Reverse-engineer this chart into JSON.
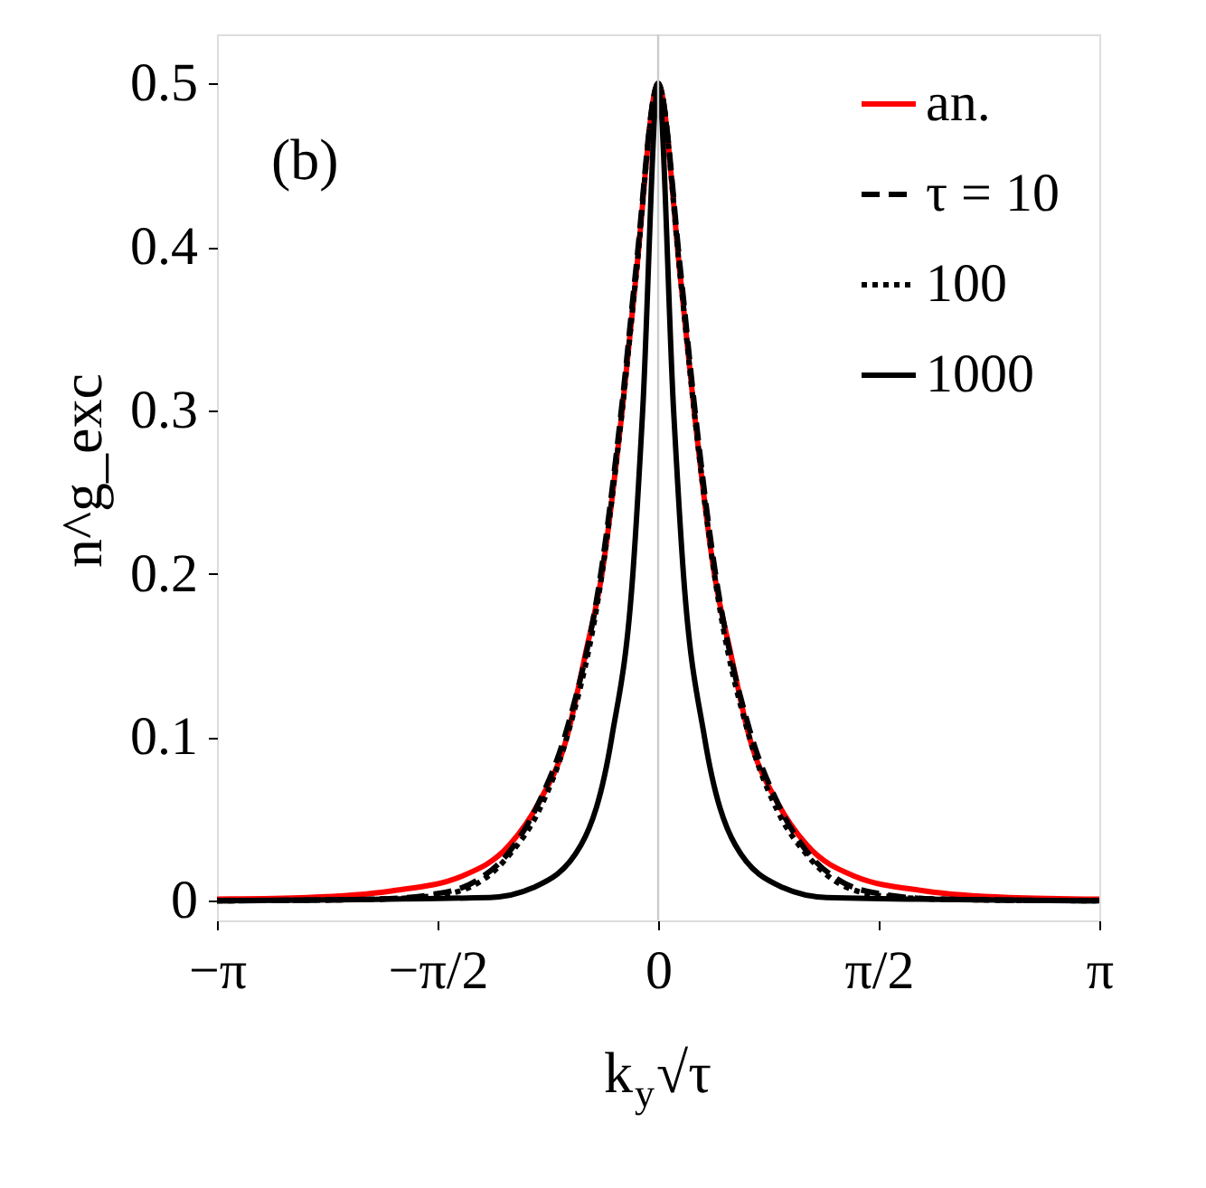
{
  "chart_data": {
    "type": "line",
    "xlabel": "k$_{y}$√τ",
    "ylabel": "n^g_exc",
    "annotations": [
      "(b)"
    ],
    "xlim": [
      -3.14159,
      3.14159
    ],
    "xticks": [
      {
        "value": -3.14159,
        "label": "−π"
      },
      {
        "value": -1.5708,
        "label": "−π/2"
      },
      {
        "value": 0,
        "label": "0"
      },
      {
        "value": 1.5708,
        "label": "π/2"
      },
      {
        "value": 3.14159,
        "label": "π"
      }
    ],
    "ylim": [
      -0.012,
      0.53
    ],
    "yticks": [
      0,
      0.1,
      0.2,
      0.3,
      0.4,
      0.5
    ],
    "grid": false,
    "legend": "top right",
    "marker": "none",
    "ref_lines": [
      {
        "axis": "x",
        "value": 0,
        "label": null,
        "color": "#cccccc"
      }
    ],
    "series": [
      {
        "name": "an.",
        "color": "#ff0000",
        "line_style": "solid",
        "x": [
          -3.14159,
          -2.5,
          -1.9,
          -1.4,
          -1.06,
          -0.85,
          -0.65,
          -0.52,
          -0.4,
          -0.256,
          -0.16,
          0,
          0.16,
          0.256,
          0.4,
          0.52,
          0.65,
          0.85,
          1.06,
          1.4,
          1.9,
          2.5,
          3.14159
        ],
        "values": [
          0.001,
          0.002,
          0.006,
          0.015,
          0.034,
          0.06,
          0.1,
          0.15,
          0.2,
          0.3,
          0.38,
          0.5,
          0.38,
          0.3,
          0.2,
          0.15,
          0.1,
          0.06,
          0.034,
          0.015,
          0.006,
          0.002,
          0.001
        ]
      },
      {
        "name": "τ = 10",
        "color": "#000000",
        "line_style": "dashed",
        "x": [
          -3.14159,
          -2.0,
          -1.6,
          -1.3,
          -1.06,
          -0.85,
          -0.65,
          -0.4,
          -0.256,
          -0.16,
          0,
          0.16,
          0.256,
          0.4,
          0.65,
          0.85,
          1.06,
          1.3,
          1.6,
          2.0,
          3.14159
        ],
        "values": [
          0,
          0.001,
          0.004,
          0.012,
          0.03,
          0.06,
          0.105,
          0.205,
          0.305,
          0.385,
          0.5,
          0.385,
          0.305,
          0.205,
          0.105,
          0.06,
          0.03,
          0.012,
          0.004,
          0.001,
          0
        ]
      },
      {
        "name": "100",
        "color": "#000000",
        "line_style": "dotted",
        "x": [
          -3.14159,
          -2.0,
          -1.6,
          -1.3,
          -1.06,
          -0.85,
          -0.65,
          -0.4,
          -0.256,
          -0.16,
          0,
          0.16,
          0.256,
          0.4,
          0.65,
          0.85,
          1.06,
          1.3,
          1.6,
          2.0,
          3.14159
        ],
        "values": [
          0,
          0.001,
          0.003,
          0.01,
          0.028,
          0.055,
          0.1,
          0.2,
          0.3,
          0.38,
          0.5,
          0.38,
          0.3,
          0.2,
          0.1,
          0.055,
          0.028,
          0.01,
          0.003,
          0.001,
          0
        ]
      },
      {
        "name": "1000",
        "color": "#000000",
        "line_style": "solid",
        "x": [
          -3.14159,
          -1.2,
          -0.89,
          -0.55,
          -0.33,
          -0.18,
          -0.11,
          0,
          0.11,
          0.18,
          0.33,
          0.55,
          0.89,
          1.2,
          3.14159
        ],
        "values": [
          0,
          0.002,
          0.008,
          0.034,
          0.1,
          0.2,
          0.3,
          0.5,
          0.3,
          0.2,
          0.1,
          0.034,
          0.008,
          0.002,
          0
        ]
      }
    ]
  }
}
